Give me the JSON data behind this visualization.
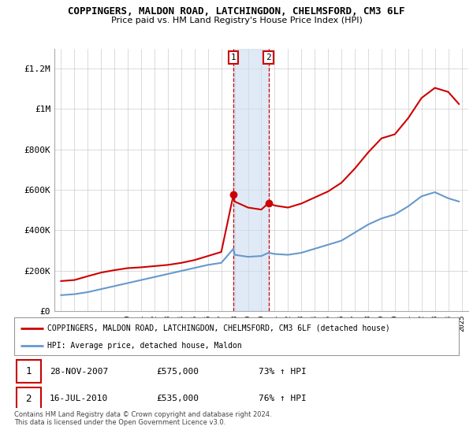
{
  "title": "COPPINGERS, MALDON ROAD, LATCHINGDON, CHELMSFORD, CM3 6LF",
  "subtitle": "Price paid vs. HM Land Registry's House Price Index (HPI)",
  "legend_line1": "COPPINGERS, MALDON ROAD, LATCHINGDON, CHELMSFORD, CM3 6LF (detached house)",
  "legend_line2": "HPI: Average price, detached house, Maldon",
  "footer": "Contains HM Land Registry data © Crown copyright and database right 2024.\nThis data is licensed under the Open Government Licence v3.0.",
  "transaction1": {
    "label": "1",
    "date": "28-NOV-2007",
    "price": "£575,000",
    "hpi": "73% ↑ HPI",
    "year": 2007.9
  },
  "transaction2": {
    "label": "2",
    "date": "16-JUL-2010",
    "price": "£535,000",
    "hpi": "76% ↑ HPI",
    "year": 2010.54
  },
  "red_color": "#cc0000",
  "blue_color": "#6699cc",
  "shade_color": "#ccddf0",
  "shade_alpha": 0.6,
  "ylim": [
    0,
    1300000
  ],
  "yticks": [
    0,
    200000,
    400000,
    600000,
    800000,
    1000000,
    1200000
  ],
  "ytick_labels": [
    "£0",
    "£200K",
    "£400K",
    "£600K",
    "£800K",
    "£1M",
    "£1.2M"
  ],
  "years": [
    1995,
    1996,
    1997,
    1998,
    1999,
    2000,
    2001,
    2002,
    2003,
    2004,
    2005,
    2006,
    2007,
    2007.91,
    2008,
    2009,
    2010,
    2010.54,
    2011,
    2012,
    2013,
    2014,
    2015,
    2016,
    2017,
    2018,
    2019,
    2020,
    2021,
    2022,
    2023,
    2024,
    2024.8
  ],
  "red_values": [
    148000,
    153000,
    172000,
    190000,
    202000,
    212000,
    216000,
    222000,
    228000,
    238000,
    252000,
    272000,
    292000,
    575000,
    542000,
    512000,
    502000,
    535000,
    522000,
    512000,
    532000,
    562000,
    592000,
    635000,
    705000,
    785000,
    855000,
    875000,
    955000,
    1055000,
    1105000,
    1085000,
    1025000
  ],
  "blue_values": [
    78000,
    83000,
    93000,
    108000,
    123000,
    138000,
    153000,
    168000,
    183000,
    198000,
    213000,
    228000,
    238000,
    308000,
    278000,
    268000,
    272000,
    288000,
    282000,
    278000,
    288000,
    308000,
    328000,
    348000,
    388000,
    428000,
    458000,
    478000,
    518000,
    568000,
    588000,
    558000,
    542000
  ]
}
